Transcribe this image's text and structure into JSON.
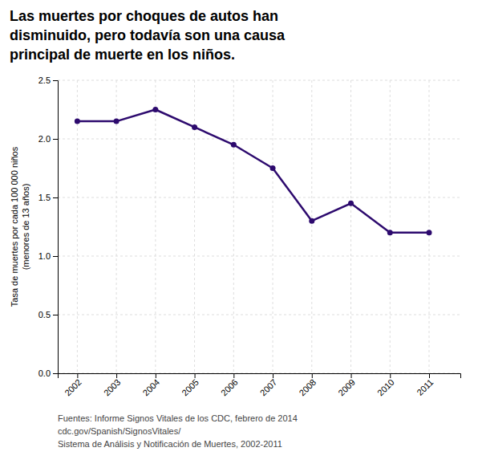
{
  "chart_data": {
    "type": "line",
    "title": [
      "Las muertes por choques de autos han",
      "disminuido, pero todavía son una causa",
      "principal de muerte en los niños."
    ],
    "y_label": [
      "Tasa de muertes por cada 100 000 niños",
      "(menores de 13 años)"
    ],
    "annotations": [
      "Fuentes: Informe Signos Vitales de los CDC, febrero de 2014",
      "cdc.gov/Spanish/SignosVitales/",
      "Sistema de Análisis y Notificación de Muertes, 2002-2011"
    ],
    "x": [
      2002,
      2003,
      2004,
      2005,
      2006,
      2007,
      2008,
      2009,
      2010,
      2011
    ],
    "values": [
      2.15,
      2.15,
      2.25,
      2.1,
      1.95,
      1.75,
      1.3,
      1.45,
      1.2,
      1.2
    ],
    "color": "#2d0a6e",
    "marker": "circle",
    "xlim": [
      2001.5,
      2011.8
    ],
    "xticks": [
      2002,
      2003,
      2004,
      2005,
      2006,
      2007,
      2008,
      2009,
      2010,
      2011
    ],
    "ylim": [
      0.0,
      2.5
    ],
    "yticks": [
      {
        "value": 0.0,
        "label": "0.0"
      },
      0.5,
      {
        "value": 1.0,
        "label": "1.0"
      },
      1.5,
      {
        "value": 2.0,
        "label": "2.0"
      },
      2.5
    ],
    "grid": true
  }
}
